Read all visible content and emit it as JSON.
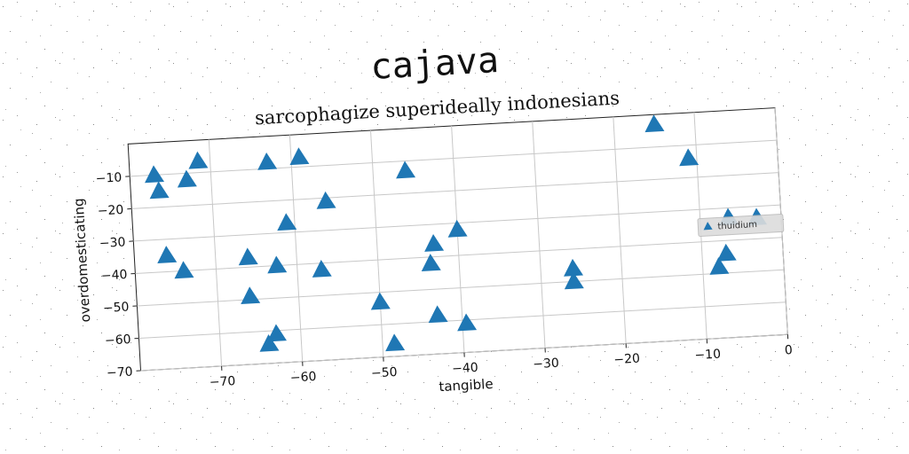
{
  "chart_data": {
    "type": "scatter",
    "suptitle": "cajava",
    "title": "sarcophagize superideally indonesians",
    "xlabel": "tangible",
    "ylabel": "overdomesticating",
    "xlim": [
      -80,
      0
    ],
    "ylim": [
      -70,
      0
    ],
    "xticks": [
      -70,
      -60,
      -50,
      -40,
      -30,
      -20,
      -10,
      0
    ],
    "yticks": [
      -70,
      -60,
      -50,
      -40,
      -30,
      -20,
      -10
    ],
    "grid": true,
    "legend_position": "right",
    "series": [
      {
        "name": "thuidium",
        "marker": "triangle",
        "color": "#1f77b4",
        "points": [
          [
            -77,
            -10
          ],
          [
            -76.5,
            -15
          ],
          [
            -73,
            -12
          ],
          [
            -71.5,
            -6.5
          ],
          [
            -63,
            -8
          ],
          [
            -59,
            -7
          ],
          [
            -46,
            -13
          ],
          [
            -15,
            -3
          ],
          [
            -11,
            -14
          ],
          [
            -56,
            -21
          ],
          [
            -61,
            -27
          ],
          [
            -40,
            -32
          ],
          [
            -43,
            -36
          ],
          [
            -76,
            -35
          ],
          [
            -74,
            -40
          ],
          [
            -66,
            -37
          ],
          [
            -62.5,
            -40
          ],
          [
            -57,
            -42
          ],
          [
            -43.5,
            -42
          ],
          [
            -66,
            -49
          ],
          [
            -50,
            -53
          ],
          [
            -26,
            -46
          ],
          [
            -26,
            -50
          ],
          [
            -7,
            -44
          ],
          [
            -8,
            -48
          ],
          [
            -63,
            -61
          ],
          [
            -64,
            -64
          ],
          [
            -43,
            -58
          ],
          [
            -39.5,
            -61
          ],
          [
            -48.5,
            -66
          ],
          [
            -6.5,
            -33
          ],
          [
            -3,
            -33.5
          ]
        ]
      }
    ]
  }
}
